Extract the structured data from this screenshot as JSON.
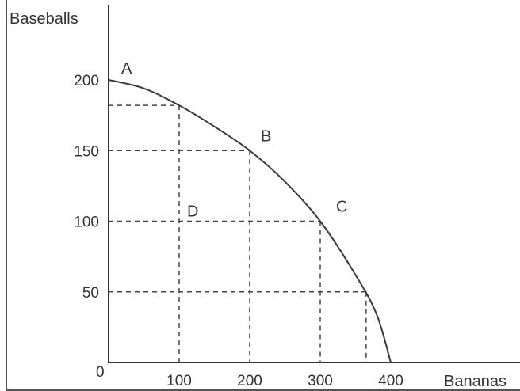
{
  "chart_data": {
    "type": "line",
    "title": "",
    "xlabel": "Bananas",
    "ylabel": "Baseballs",
    "origin_label": "0",
    "xlim": [
      0,
      440
    ],
    "ylim": [
      0,
      220
    ],
    "x_ticks": [
      100,
      200,
      300,
      400
    ],
    "y_ticks": [
      50,
      100,
      150,
      200
    ],
    "grid": false,
    "series": [
      {
        "values_x": [
          0,
          50,
          100,
          150,
          200,
          250,
          300,
          350,
          380,
          400
        ],
        "values_y": [
          200,
          194,
          182,
          167,
          150,
          128,
          100,
          62,
          34,
          0
        ],
        "color": "#3a3a3a"
      }
    ],
    "points": [
      {
        "label": "A",
        "x": 0,
        "y": 200
      },
      {
        "label": "B",
        "x": 200,
        "y": 150
      },
      {
        "label": "C",
        "x": 300,
        "y": 100
      },
      {
        "label": "D",
        "x": 100,
        "y": 100
      }
    ],
    "guide_lines": [
      {
        "x": 100,
        "y": 182
      },
      {
        "x": 200,
        "y": 150
      },
      {
        "x": 300,
        "y": 100
      },
      {
        "x": 365,
        "y": 50
      }
    ]
  }
}
